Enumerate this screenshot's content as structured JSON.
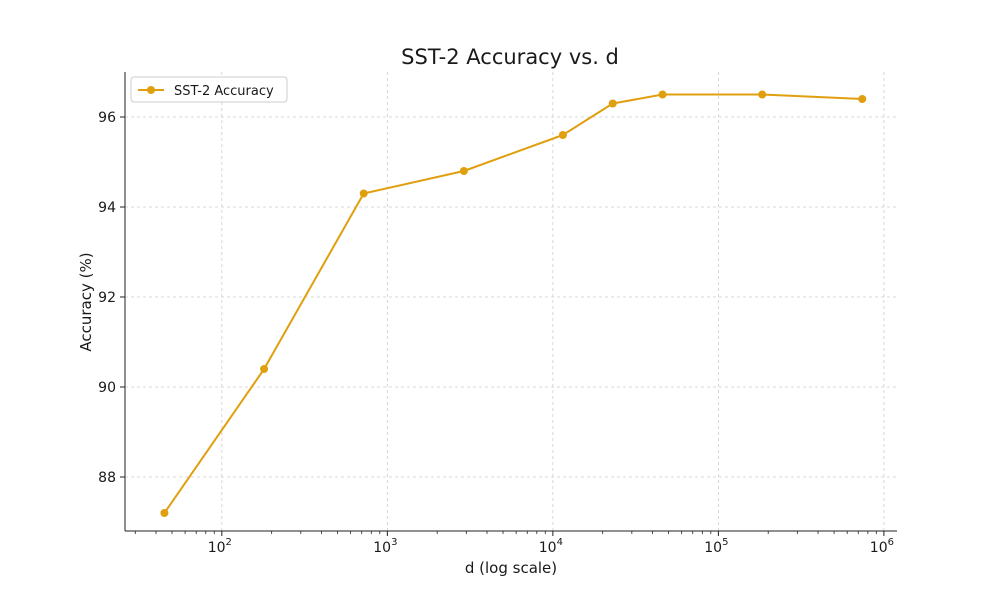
{
  "chart_data": {
    "type": "line",
    "title": "SST-2 Accuracy vs. d",
    "xlabel": "d (log scale)",
    "ylabel": "Accuracy (%)",
    "x_scale": "log",
    "xlim": [
      26,
      1200000
    ],
    "ylim": [
      86.8,
      97.0
    ],
    "x_ticks": [
      {
        "value": 100,
        "base": "10",
        "exp": "2"
      },
      {
        "value": 1000,
        "base": "10",
        "exp": "3"
      },
      {
        "value": 10000,
        "base": "10",
        "exp": "4"
      },
      {
        "value": 100000,
        "base": "10",
        "exp": "5"
      },
      {
        "value": 1000000,
        "base": "10",
        "exp": "6"
      }
    ],
    "y_ticks": [
      88,
      90,
      92,
      94,
      96
    ],
    "grid": true,
    "legend_position": "top-left",
    "color": "#e09f0e",
    "series": [
      {
        "name": "SST-2 Accuracy",
        "x": [
          45,
          180,
          720,
          2900,
          11500,
          23000,
          46000,
          184000,
          740000
        ],
        "y": [
          87.2,
          90.4,
          94.3,
          94.8,
          95.6,
          96.3,
          96.5,
          96.5,
          96.4
        ]
      }
    ]
  }
}
